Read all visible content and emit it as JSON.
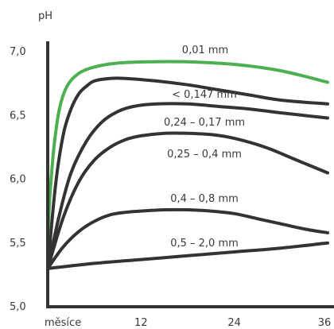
{
  "chart_data": {
    "type": "line",
    "ylabel": "pH",
    "xlabel": "měsíce",
    "xlim": [
      0,
      36
    ],
    "ylim": [
      5.0,
      7.0
    ],
    "x_ticks": [
      {
        "value": 12,
        "label": "12"
      },
      {
        "value": 24,
        "label": "24"
      },
      {
        "value": 36,
        "label": "36"
      }
    ],
    "y_ticks": [
      {
        "value": 7.0,
        "label": "7,0"
      },
      {
        "value": 6.5,
        "label": "6,5"
      },
      {
        "value": 6.0,
        "label": "6,0"
      },
      {
        "value": 5.5,
        "label": "5,5"
      },
      {
        "value": 5.0,
        "label": "5,0"
      }
    ],
    "colors": {
      "highlight": "#4caf50",
      "default": "#333333"
    },
    "series": [
      {
        "name": "0,01 mm",
        "color": "#4caf50",
        "x": [
          0,
          0.3,
          0.8,
          1.5,
          2.5,
          4,
          6,
          9,
          13,
          18,
          24,
          30,
          36
        ],
        "y": [
          5.55,
          5.88,
          6.25,
          6.55,
          6.73,
          6.83,
          6.88,
          6.91,
          6.92,
          6.92,
          6.9,
          6.85,
          6.76
        ]
      },
      {
        "name": "< 0,147 mm",
        "color": "#333333",
        "x": [
          0,
          1,
          2,
          3,
          4,
          5,
          6,
          8,
          10,
          14,
          18,
          22,
          26,
          30,
          36
        ],
        "y": [
          5.3,
          5.95,
          6.35,
          6.55,
          6.67,
          6.73,
          6.77,
          6.79,
          6.79,
          6.77,
          6.74,
          6.7,
          6.66,
          6.62,
          6.59
        ]
      },
      {
        "name": "0,24 – 0,17 mm",
        "color": "#333333",
        "x": [
          0,
          1.5,
          3,
          5,
          7,
          9,
          11,
          14,
          18,
          22,
          26,
          30,
          36
        ],
        "y": [
          5.3,
          5.72,
          6.05,
          6.3,
          6.45,
          6.53,
          6.57,
          6.59,
          6.59,
          6.57,
          6.55,
          6.52,
          6.48
        ]
      },
      {
        "name": "0,25 – 0,4 mm",
        "color": "#333333",
        "x": [
          0,
          2,
          4,
          6,
          8,
          10,
          12,
          15,
          18,
          21,
          24,
          28,
          32,
          36
        ],
        "y": [
          5.3,
          5.7,
          5.98,
          6.15,
          6.25,
          6.31,
          6.34,
          6.36,
          6.36,
          6.35,
          6.32,
          6.25,
          6.15,
          6.05
        ]
      },
      {
        "name": "0,4 – 0,8 mm",
        "color": "#333333",
        "x": [
          0,
          2,
          4,
          6,
          8,
          10,
          12,
          15,
          18,
          21,
          24,
          27,
          30,
          33,
          36
        ],
        "y": [
          5.3,
          5.47,
          5.59,
          5.67,
          5.72,
          5.74,
          5.75,
          5.76,
          5.76,
          5.75,
          5.73,
          5.69,
          5.65,
          5.61,
          5.58
        ]
      },
      {
        "name": "0,5 – 2,0 mm",
        "color": "#333333",
        "x": [
          0,
          6,
          12,
          18,
          24,
          30,
          36
        ],
        "y": [
          5.3,
          5.34,
          5.37,
          5.4,
          5.43,
          5.46,
          5.5
        ]
      }
    ],
    "grid": false,
    "legend": "inline labels above each curve"
  }
}
